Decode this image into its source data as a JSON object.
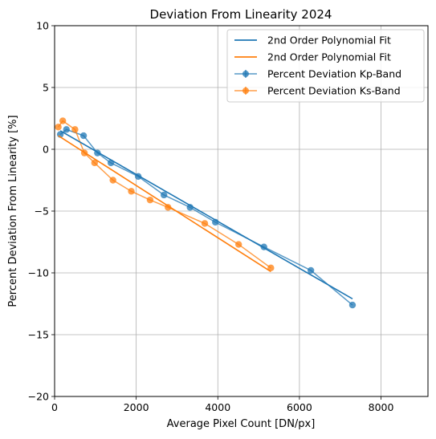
{
  "chart_data": {
    "type": "line",
    "title": "Deviation From Linearity 2024",
    "xlabel": "Average Pixel Count [DN/px]",
    "ylabel": "Percent Deviation From Linearity [%]",
    "xlim": [
      0,
      9150
    ],
    "ylim": [
      -20,
      10
    ],
    "xticks": [
      0,
      2000,
      4000,
      6000,
      8000
    ],
    "yticks": [
      -20,
      -15,
      -10,
      -5,
      0,
      5,
      10
    ],
    "xtick_labels": [
      "0",
      "2000",
      "4000",
      "6000",
      "8000"
    ],
    "ytick_labels": [
      "−20",
      "−15",
      "−10",
      "−5",
      "0",
      "5",
      "10"
    ],
    "grid": true,
    "legend_position": "top-right",
    "series": [
      {
        "name": "Percent Deviation Kp-Band",
        "kind": "errorbar",
        "color": "#1f77b4",
        "x": [
          140,
          290,
          710,
          1050,
          1380,
          2050,
          2680,
          3320,
          3940,
          5130,
          6280,
          7300
        ],
        "y": [
          1.2,
          1.6,
          1.1,
          -0.3,
          -1.1,
          -2.2,
          -3.7,
          -4.7,
          -5.9,
          -7.9,
          -9.8,
          -12.6
        ]
      },
      {
        "name": "Percent Deviation Ks-Band",
        "kind": "errorbar",
        "color": "#ff7f0e",
        "x": [
          90,
          200,
          500,
          730,
          980,
          1430,
          1880,
          2340,
          2780,
          3680,
          4510,
          5300
        ],
        "y": [
          1.8,
          2.3,
          1.6,
          -0.3,
          -1.1,
          -2.5,
          -3.4,
          -4.1,
          -4.7,
          -6.0,
          -7.7,
          -9.6
        ]
      },
      {
        "name": "2nd Order Polynomial Fit",
        "kind": "fit",
        "color": "#1f77b4",
        "x": [
          140,
          7300
        ],
        "y": [
          1.5,
          -12.1
        ]
      },
      {
        "name": "2nd Order Polynomial Fit",
        "kind": "fit",
        "color": "#ff7f0e",
        "x": [
          90,
          5300
        ],
        "y": [
          1.1,
          -9.9
        ]
      }
    ],
    "legend": [
      {
        "label": "2nd Order Polynomial Fit",
        "color": "#1f77b4",
        "marker": "line"
      },
      {
        "label": "2nd Order Polynomial Fit",
        "color": "#ff7f0e",
        "marker": "line"
      },
      {
        "label": "Percent Deviation Kp-Band",
        "color": "#1f77b4",
        "marker": "errorbar"
      },
      {
        "label": "Percent Deviation Ks-Band",
        "color": "#ff7f0e",
        "marker": "errorbar"
      }
    ]
  }
}
